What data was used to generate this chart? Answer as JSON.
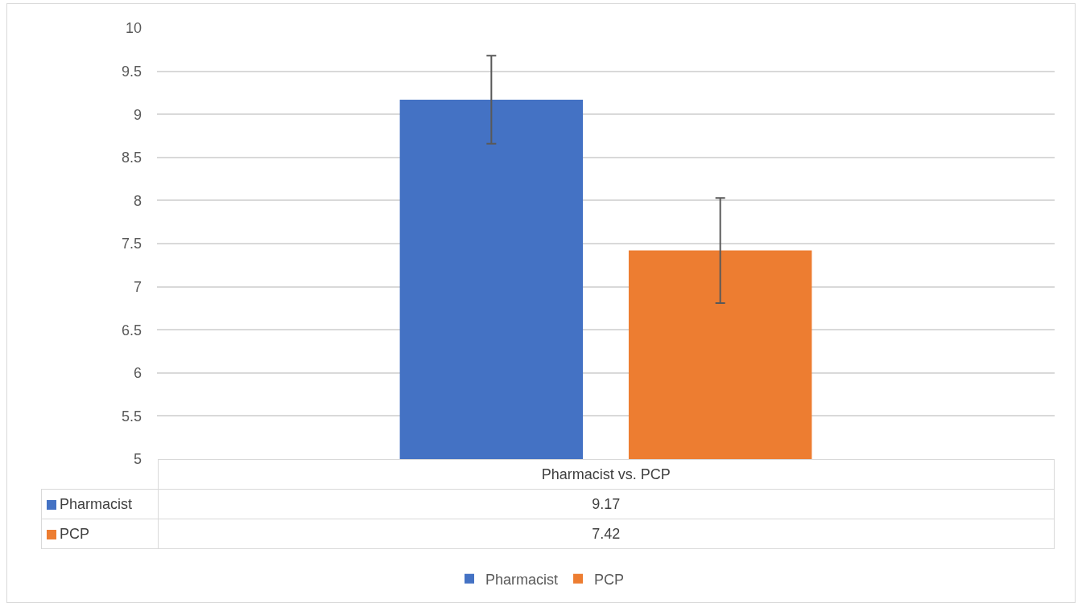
{
  "chart_data": {
    "type": "bar",
    "categories": [
      "Pharmacist vs. PCP"
    ],
    "series": [
      {
        "name": "Pharmacist",
        "color": "#4472c4",
        "values": [
          9.17
        ],
        "errors": [
          0.51
        ]
      },
      {
        "name": "PCP",
        "color": "#ed7d31",
        "values": [
          7.42
        ],
        "errors": [
          0.61
        ]
      }
    ],
    "ylim": [
      5,
      10
    ],
    "yticks": [
      5,
      5.5,
      6,
      6.5,
      7,
      7.5,
      8,
      8.5,
      9,
      9.5,
      10
    ],
    "grid": "y",
    "legend": "bottom",
    "annotations": [
      "9.17",
      "7.42"
    ]
  }
}
